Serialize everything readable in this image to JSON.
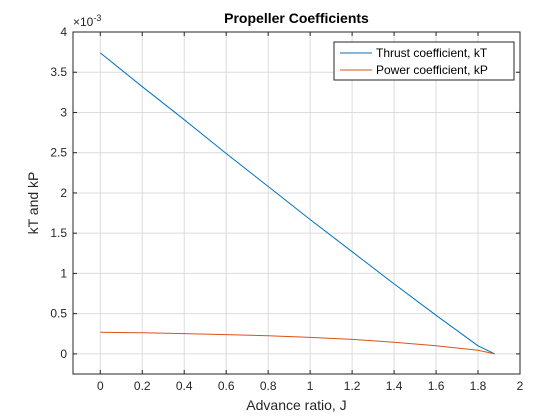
{
  "chart_data": {
    "type": "line",
    "title": "Propeller Coefficients",
    "xlabel": "Advance ratio, J",
    "ylabel": "kT and kP",
    "y_exponent_label": "×10",
    "y_exponent_power": "-3",
    "xlim": [
      -0.13,
      2.0
    ],
    "ylim": [
      -0.25,
      4.0
    ],
    "xticks": [
      "0",
      "0.2",
      "0.4",
      "0.6",
      "0.8",
      "1",
      "1.2",
      "1.4",
      "1.6",
      "1.8",
      "2"
    ],
    "xtick_values": [
      0,
      0.2,
      0.4,
      0.6,
      0.8,
      1.0,
      1.2,
      1.4,
      1.6,
      1.8,
      2.0
    ],
    "yticks": [
      "0",
      "0.5",
      "1",
      "1.5",
      "2",
      "2.5",
      "3",
      "3.5",
      "4"
    ],
    "ytick_values": [
      0,
      0.5,
      1.0,
      1.5,
      2.0,
      2.5,
      3.0,
      3.5,
      4.0
    ],
    "grid": true,
    "legend_position": "top-right",
    "series": [
      {
        "name": "Thrust coefficient, kT",
        "color": "#0072BD",
        "x": [
          0,
          0.2,
          0.4,
          0.6,
          0.8,
          1.0,
          1.2,
          1.4,
          1.6,
          1.8,
          1.88
        ],
        "y": [
          3.74,
          3.32,
          2.91,
          2.49,
          2.08,
          1.67,
          1.27,
          0.87,
          0.48,
          0.1,
          0.0
        ]
      },
      {
        "name": "Power coefficient, kP",
        "color": "#D95319",
        "x": [
          0,
          0.2,
          0.4,
          0.6,
          0.8,
          1.0,
          1.2,
          1.4,
          1.6,
          1.8,
          1.88
        ],
        "y": [
          0.27,
          0.262,
          0.252,
          0.24,
          0.225,
          0.205,
          0.18,
          0.145,
          0.1,
          0.045,
          0.0
        ]
      }
    ]
  }
}
